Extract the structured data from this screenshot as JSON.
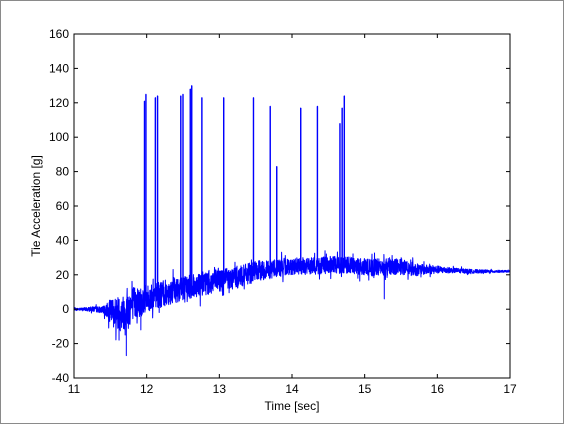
{
  "chart_data": {
    "type": "line",
    "title": "",
    "xlabel": "Time [sec]",
    "ylabel": "Tie Acceleration [g]",
    "xlim": [
      11,
      17
    ],
    "ylim": [
      -40,
      160
    ],
    "xticks": [
      11,
      12,
      13,
      14,
      15,
      16,
      17
    ],
    "yticks": [
      -40,
      -20,
      0,
      20,
      40,
      60,
      80,
      100,
      120,
      140,
      160
    ],
    "grid": false,
    "legend": "none",
    "series": [
      {
        "color": "#0000ff",
        "baseline": [
          [
            11.0,
            0
          ],
          [
            11.3,
            0
          ],
          [
            11.5,
            -1
          ],
          [
            11.65,
            -3
          ],
          [
            11.8,
            3
          ],
          [
            12.0,
            6
          ],
          [
            12.3,
            10
          ],
          [
            12.6,
            13
          ],
          [
            12.8,
            15
          ],
          [
            13.0,
            17
          ],
          [
            13.3,
            19
          ],
          [
            13.5,
            22
          ],
          [
            13.8,
            24
          ],
          [
            14.0,
            25
          ],
          [
            14.3,
            25
          ],
          [
            14.6,
            26
          ],
          [
            14.9,
            25
          ],
          [
            15.1,
            24
          ],
          [
            15.3,
            25
          ],
          [
            15.5,
            25
          ],
          [
            15.7,
            23
          ],
          [
            16.0,
            23
          ],
          [
            16.5,
            22
          ],
          [
            17.0,
            22
          ]
        ],
        "noise_amplitude": [
          [
            11.0,
            0.5
          ],
          [
            11.4,
            2
          ],
          [
            11.55,
            9
          ],
          [
            11.75,
            11
          ],
          [
            12.0,
            8
          ],
          [
            12.5,
            7
          ],
          [
            13.0,
            7
          ],
          [
            13.5,
            6
          ],
          [
            14.0,
            5
          ],
          [
            14.5,
            5
          ],
          [
            15.0,
            5
          ],
          [
            15.5,
            5
          ],
          [
            15.8,
            3
          ],
          [
            16.2,
            1.5
          ],
          [
            16.6,
            1
          ],
          [
            17.0,
            0.5
          ]
        ],
        "spikes": [
          {
            "t": 11.97,
            "peak": 121
          },
          {
            "t": 11.99,
            "peak": 125
          },
          {
            "t": 12.12,
            "peak": 123
          },
          {
            "t": 12.15,
            "peak": 124
          },
          {
            "t": 12.47,
            "peak": 124
          },
          {
            "t": 12.5,
            "peak": 125
          },
          {
            "t": 12.6,
            "peak": 128
          },
          {
            "t": 12.62,
            "peak": 130
          },
          {
            "t": 12.76,
            "peak": 123
          },
          {
            "t": 13.06,
            "peak": 123
          },
          {
            "t": 13.47,
            "peak": 123
          },
          {
            "t": 13.7,
            "peak": 118
          },
          {
            "t": 13.79,
            "peak": 83
          },
          {
            "t": 14.12,
            "peak": 117
          },
          {
            "t": 14.35,
            "peak": 118
          },
          {
            "t": 14.66,
            "peak": 108
          },
          {
            "t": 14.69,
            "peak": 117
          },
          {
            "t": 14.72,
            "peak": 124
          }
        ],
        "negative_spikes": [
          {
            "t": 11.72,
            "trough": -27
          },
          {
            "t": 11.62,
            "trough": -18
          },
          {
            "t": 11.92,
            "trough": -12
          },
          {
            "t": 15.27,
            "trough": 6
          }
        ]
      }
    ]
  }
}
